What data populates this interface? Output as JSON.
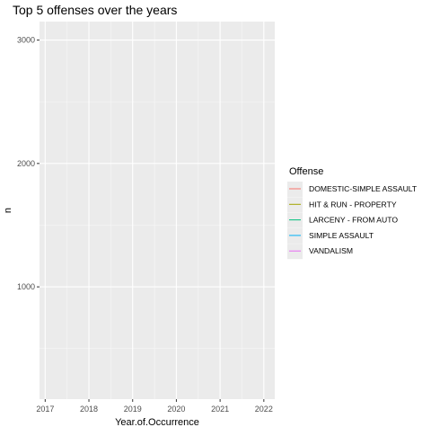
{
  "chart_data": {
    "type": "line",
    "title": "Top 5 offenses over the years",
    "xlabel": "Year.of.Occurrence",
    "ylabel": "n",
    "x_ticks": [
      2017,
      2018,
      2019,
      2020,
      2021,
      2022
    ],
    "y_ticks": [
      1000,
      2000,
      3000
    ],
    "xlim": [
      2016.87,
      2022.25
    ],
    "ylim": [
      90,
      3150
    ],
    "grid": true,
    "legend_position": "right",
    "legend_title": "Offense",
    "series": [
      {
        "name": "DOMESTIC-SIMPLE ASSAULT",
        "color": "#F8766D",
        "x": [],
        "y": []
      },
      {
        "name": "HIT & RUN - PROPERTY",
        "color": "#A3A500",
        "x": [],
        "y": []
      },
      {
        "name": "LARCENY - FROM AUTO",
        "color": "#00BF7D",
        "x": [],
        "y": []
      },
      {
        "name": "SIMPLE ASSAULT",
        "color": "#00B0F6",
        "x": [],
        "y": []
      },
      {
        "name": "VANDALISM",
        "color": "#E76BF3",
        "x": [],
        "y": []
      }
    ]
  }
}
